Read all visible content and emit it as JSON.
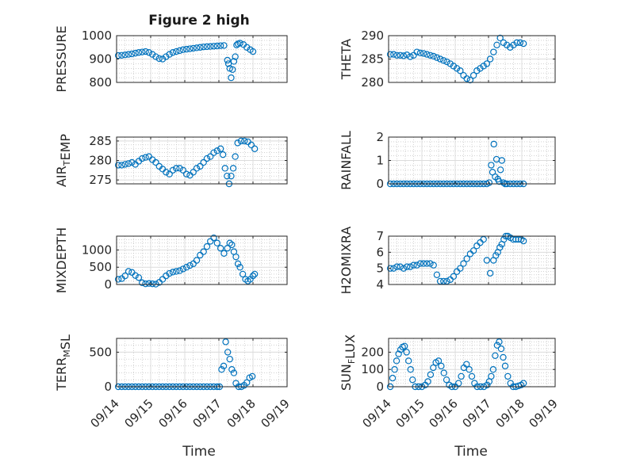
{
  "title": "Figure 2 high",
  "x_ticks": [
    "09/14",
    "09/15",
    "09/16",
    "09/17",
    "09/18",
    "09/19"
  ],
  "x_label": "Time",
  "colors": {
    "marker": "#0072BD",
    "axis": "#262626"
  },
  "chart_data": [
    {
      "type": "scatter",
      "ylabel_parts": [
        [
          "PRESSURE",
          ""
        ]
      ],
      "ylabel_text": "PRESSURE",
      "ylim": [
        800,
        1000
      ],
      "yticks": [
        800,
        900,
        1000
      ],
      "xlim": [
        0,
        5
      ],
      "x": [
        0.05,
        0.15,
        0.25,
        0.35,
        0.45,
        0.55,
        0.65,
        0.75,
        0.85,
        0.95,
        1.05,
        1.15,
        1.25,
        1.35,
        1.45,
        1.55,
        1.65,
        1.75,
        1.85,
        1.95,
        2.05,
        2.15,
        2.25,
        2.35,
        2.45,
        2.55,
        2.65,
        2.75,
        2.85,
        2.95,
        3.05,
        3.15,
        3.25,
        3.28,
        3.32,
        3.36,
        3.4,
        3.44,
        3.48,
        3.52,
        3.56,
        3.62,
        3.72,
        3.82,
        3.92,
        4.0
      ],
      "y": [
        915,
        916,
        918,
        920,
        922,
        925,
        928,
        930,
        932,
        928,
        920,
        910,
        902,
        900,
        910,
        920,
        928,
        932,
        936,
        940,
        942,
        944,
        946,
        948,
        950,
        952,
        953,
        954,
        955,
        956,
        957,
        958,
        895,
        880,
        860,
        820,
        855,
        890,
        910,
        960,
        965,
        968,
        962,
        950,
        940,
        932
      ]
    },
    {
      "type": "scatter",
      "ylabel_text": "THETA",
      "ylim": [
        280,
        290
      ],
      "yticks": [
        280,
        285,
        290
      ],
      "xlim": [
        0,
        5
      ],
      "x": [
        0.05,
        0.15,
        0.25,
        0.35,
        0.45,
        0.55,
        0.65,
        0.75,
        0.85,
        0.95,
        1.05,
        1.15,
        1.25,
        1.35,
        1.45,
        1.55,
        1.65,
        1.75,
        1.85,
        1.95,
        2.05,
        2.15,
        2.25,
        2.35,
        2.45,
        2.55,
        2.65,
        2.75,
        2.85,
        2.95,
        3.05,
        3.15,
        3.25,
        3.35,
        3.45,
        3.55,
        3.65,
        3.75,
        3.85,
        3.95,
        4.05
      ],
      "y": [
        286,
        286,
        285.8,
        285.8,
        285.7,
        285.9,
        285.5,
        285.8,
        286.5,
        286.3,
        286.2,
        286.0,
        285.8,
        285.6,
        285.3,
        285.0,
        284.7,
        284.4,
        284.0,
        283.5,
        283.0,
        282.5,
        281.5,
        280.8,
        280.5,
        281.5,
        282.5,
        283,
        283.5,
        284,
        285,
        286.5,
        288,
        289.5,
        288.5,
        288,
        287.5,
        288,
        288.5,
        288.5,
        288.3
      ]
    },
    {
      "type": "scatter",
      "ylabel_parts": [
        [
          "AIR",
          ""
        ],
        [
          "T",
          "sub"
        ],
        [
          "EMP",
          ""
        ]
      ],
      "ylabel_text": "AIR_TEMP",
      "ylim": [
        274,
        286
      ],
      "yticks": [
        275,
        280,
        285
      ],
      "xlim": [
        0,
        5
      ],
      "x": [
        0.05,
        0.15,
        0.25,
        0.35,
        0.45,
        0.55,
        0.65,
        0.75,
        0.85,
        0.95,
        1.05,
        1.15,
        1.25,
        1.35,
        1.45,
        1.55,
        1.65,
        1.75,
        1.85,
        1.95,
        2.05,
        2.15,
        2.25,
        2.35,
        2.45,
        2.55,
        2.65,
        2.75,
        2.85,
        2.95,
        3.05,
        3.12,
        3.18,
        3.24,
        3.3,
        3.36,
        3.42,
        3.48,
        3.55,
        3.65,
        3.75,
        3.85,
        3.95,
        4.05
      ],
      "y": [
        278.8,
        278.8,
        279,
        279.2,
        279.5,
        279,
        279.8,
        280.5,
        280.8,
        281,
        280.2,
        279.5,
        278.5,
        277.8,
        277,
        276.5,
        277.5,
        278,
        278,
        277.5,
        276.5,
        276.2,
        277,
        278,
        278.5,
        279.5,
        280.5,
        281,
        282,
        282.5,
        283,
        281.5,
        278,
        276,
        274,
        276,
        278,
        281,
        284.5,
        285,
        285,
        284.8,
        284,
        283
      ]
    },
    {
      "type": "scatter",
      "ylabel_text": "RAINFALL",
      "ylim": [
        0,
        2
      ],
      "yticks": [
        0,
        1,
        2
      ],
      "xlim": [
        0,
        5
      ],
      "x": [
        0.05,
        0.15,
        0.25,
        0.35,
        0.45,
        0.55,
        0.65,
        0.75,
        0.85,
        0.95,
        1.05,
        1.15,
        1.25,
        1.35,
        1.45,
        1.55,
        1.65,
        1.75,
        1.85,
        1.95,
        2.05,
        2.15,
        2.25,
        2.35,
        2.45,
        2.55,
        2.65,
        2.75,
        2.85,
        2.95,
        3.02,
        3.08,
        3.12,
        3.16,
        3.2,
        3.24,
        3.28,
        3.32,
        3.36,
        3.4,
        3.45,
        3.5,
        3.55,
        3.65,
        3.75,
        3.85,
        3.95,
        4.05
      ],
      "y": [
        0,
        0,
        0,
        0,
        0,
        0,
        0,
        0,
        0,
        0,
        0,
        0,
        0,
        0,
        0,
        0,
        0,
        0,
        0,
        0,
        0,
        0,
        0,
        0,
        0,
        0,
        0,
        0,
        0,
        0,
        0.05,
        0.8,
        0.5,
        1.7,
        0.3,
        1.05,
        0.2,
        0.1,
        0.6,
        1.0,
        0.05,
        0,
        0,
        0,
        0,
        0,
        0,
        0
      ]
    },
    {
      "type": "scatter",
      "ylabel_text": "MIXDEPTH",
      "ylim": [
        0,
        1400
      ],
      "yticks": [
        0,
        500,
        1000
      ],
      "xlim": [
        0,
        5
      ],
      "x": [
        0.05,
        0.15,
        0.25,
        0.35,
        0.45,
        0.55,
        0.65,
        0.75,
        0.85,
        0.95,
        1.05,
        1.15,
        1.25,
        1.35,
        1.45,
        1.55,
        1.65,
        1.75,
        1.85,
        1.95,
        2.05,
        2.15,
        2.25,
        2.35,
        2.45,
        2.55,
        2.65,
        2.75,
        2.85,
        2.95,
        3.05,
        3.15,
        3.25,
        3.32,
        3.38,
        3.44,
        3.5,
        3.56,
        3.62,
        3.7,
        3.78,
        3.85,
        3.92,
        4.0,
        4.05
      ],
      "y": [
        150,
        170,
        250,
        380,
        350,
        260,
        200,
        50,
        20,
        30,
        20,
        10,
        60,
        150,
        250,
        320,
        360,
        380,
        400,
        450,
        500,
        550,
        600,
        700,
        850,
        950,
        1100,
        1250,
        1350,
        1200,
        1050,
        900,
        1050,
        1200,
        1150,
        950,
        800,
        600,
        500,
        300,
        150,
        100,
        150,
        250,
        300
      ]
    },
    {
      "type": "scatter",
      "ylabel_text": "H2OMIXRA",
      "ylim": [
        4,
        7
      ],
      "yticks": [
        4,
        5,
        6,
        7
      ],
      "xlim": [
        0,
        5
      ],
      "x": [
        0.05,
        0.15,
        0.25,
        0.35,
        0.45,
        0.55,
        0.65,
        0.75,
        0.85,
        0.95,
        1.05,
        1.15,
        1.25,
        1.35,
        1.45,
        1.55,
        1.65,
        1.75,
        1.85,
        1.95,
        2.05,
        2.15,
        2.25,
        2.35,
        2.45,
        2.55,
        2.65,
        2.75,
        2.85,
        2.95,
        3.05,
        3.15,
        3.22,
        3.28,
        3.34,
        3.4,
        3.46,
        3.52,
        3.58,
        3.66,
        3.74,
        3.82,
        3.9,
        3.98,
        4.05
      ],
      "y": [
        5.0,
        5.0,
        5.1,
        5.1,
        5.0,
        5.1,
        5.1,
        5.2,
        5.2,
        5.3,
        5.3,
        5.3,
        5.3,
        5.2,
        4.6,
        4.2,
        4.2,
        4.2,
        4.3,
        4.5,
        4.8,
        5.0,
        5.3,
        5.6,
        5.9,
        6.1,
        6.4,
        6.6,
        6.8,
        5.5,
        4.7,
        5.5,
        5.8,
        6.0,
        6.3,
        6.5,
        6.8,
        7.0,
        7.0,
        6.9,
        6.8,
        6.8,
        6.8,
        6.8,
        6.7
      ]
    },
    {
      "type": "scatter",
      "ylabel_parts": [
        [
          "TERR",
          ""
        ],
        [
          "M",
          "sub"
        ],
        [
          "SL",
          ""
        ]
      ],
      "ylabel_text": "TERR_MSL",
      "ylim": [
        0,
        700
      ],
      "yticks": [
        0,
        500
      ],
      "xlim": [
        0,
        5
      ],
      "x": [
        0.05,
        0.15,
        0.25,
        0.35,
        0.45,
        0.55,
        0.65,
        0.75,
        0.85,
        0.95,
        1.05,
        1.15,
        1.25,
        1.35,
        1.45,
        1.55,
        1.65,
        1.75,
        1.85,
        1.95,
        2.05,
        2.15,
        2.25,
        2.35,
        2.45,
        2.55,
        2.65,
        2.75,
        2.85,
        2.95,
        3.02,
        3.08,
        3.14,
        3.2,
        3.26,
        3.32,
        3.38,
        3.44,
        3.5,
        3.58,
        3.66,
        3.74,
        3.82,
        3.9,
        3.98
      ],
      "y": [
        0,
        0,
        0,
        0,
        0,
        0,
        0,
        0,
        0,
        0,
        0,
        0,
        0,
        0,
        0,
        0,
        0,
        0,
        0,
        0,
        0,
        0,
        0,
        0,
        0,
        0,
        0,
        0,
        0,
        0,
        0,
        250,
        300,
        650,
        500,
        400,
        250,
        200,
        50,
        0,
        0,
        20,
        60,
        130,
        150
      ]
    },
    {
      "type": "scatter",
      "ylabel_parts": [
        [
          "SUN",
          ""
        ],
        [
          "F",
          "sub"
        ],
        [
          "LUX",
          ""
        ]
      ],
      "ylabel_text": "SUN_FLUX",
      "ylim": [
        0,
        280
      ],
      "yticks": [
        0,
        100,
        200
      ],
      "xlim": [
        0,
        5
      ],
      "x": [
        0.05,
        0.12,
        0.18,
        0.24,
        0.3,
        0.36,
        0.42,
        0.48,
        0.54,
        0.6,
        0.66,
        0.72,
        0.8,
        0.9,
        1.0,
        1.1,
        1.18,
        1.26,
        1.34,
        1.42,
        1.5,
        1.58,
        1.66,
        1.74,
        1.82,
        1.9,
        2.0,
        2.1,
        2.18,
        2.26,
        2.34,
        2.42,
        2.5,
        2.58,
        2.66,
        2.76,
        2.86,
        2.96,
        3.02,
        3.08,
        3.14,
        3.2,
        3.26,
        3.32,
        3.38,
        3.44,
        3.5,
        3.58,
        3.66,
        3.74,
        3.82,
        3.9,
        3.98,
        4.05
      ],
      "y": [
        0,
        50,
        100,
        150,
        190,
        215,
        230,
        235,
        200,
        150,
        100,
        40,
        0,
        0,
        0,
        10,
        30,
        70,
        110,
        140,
        150,
        120,
        80,
        40,
        10,
        0,
        0,
        20,
        60,
        110,
        130,
        100,
        60,
        20,
        0,
        0,
        0,
        10,
        30,
        60,
        100,
        180,
        240,
        260,
        220,
        170,
        120,
        60,
        20,
        0,
        0,
        5,
        10,
        20
      ]
    }
  ]
}
